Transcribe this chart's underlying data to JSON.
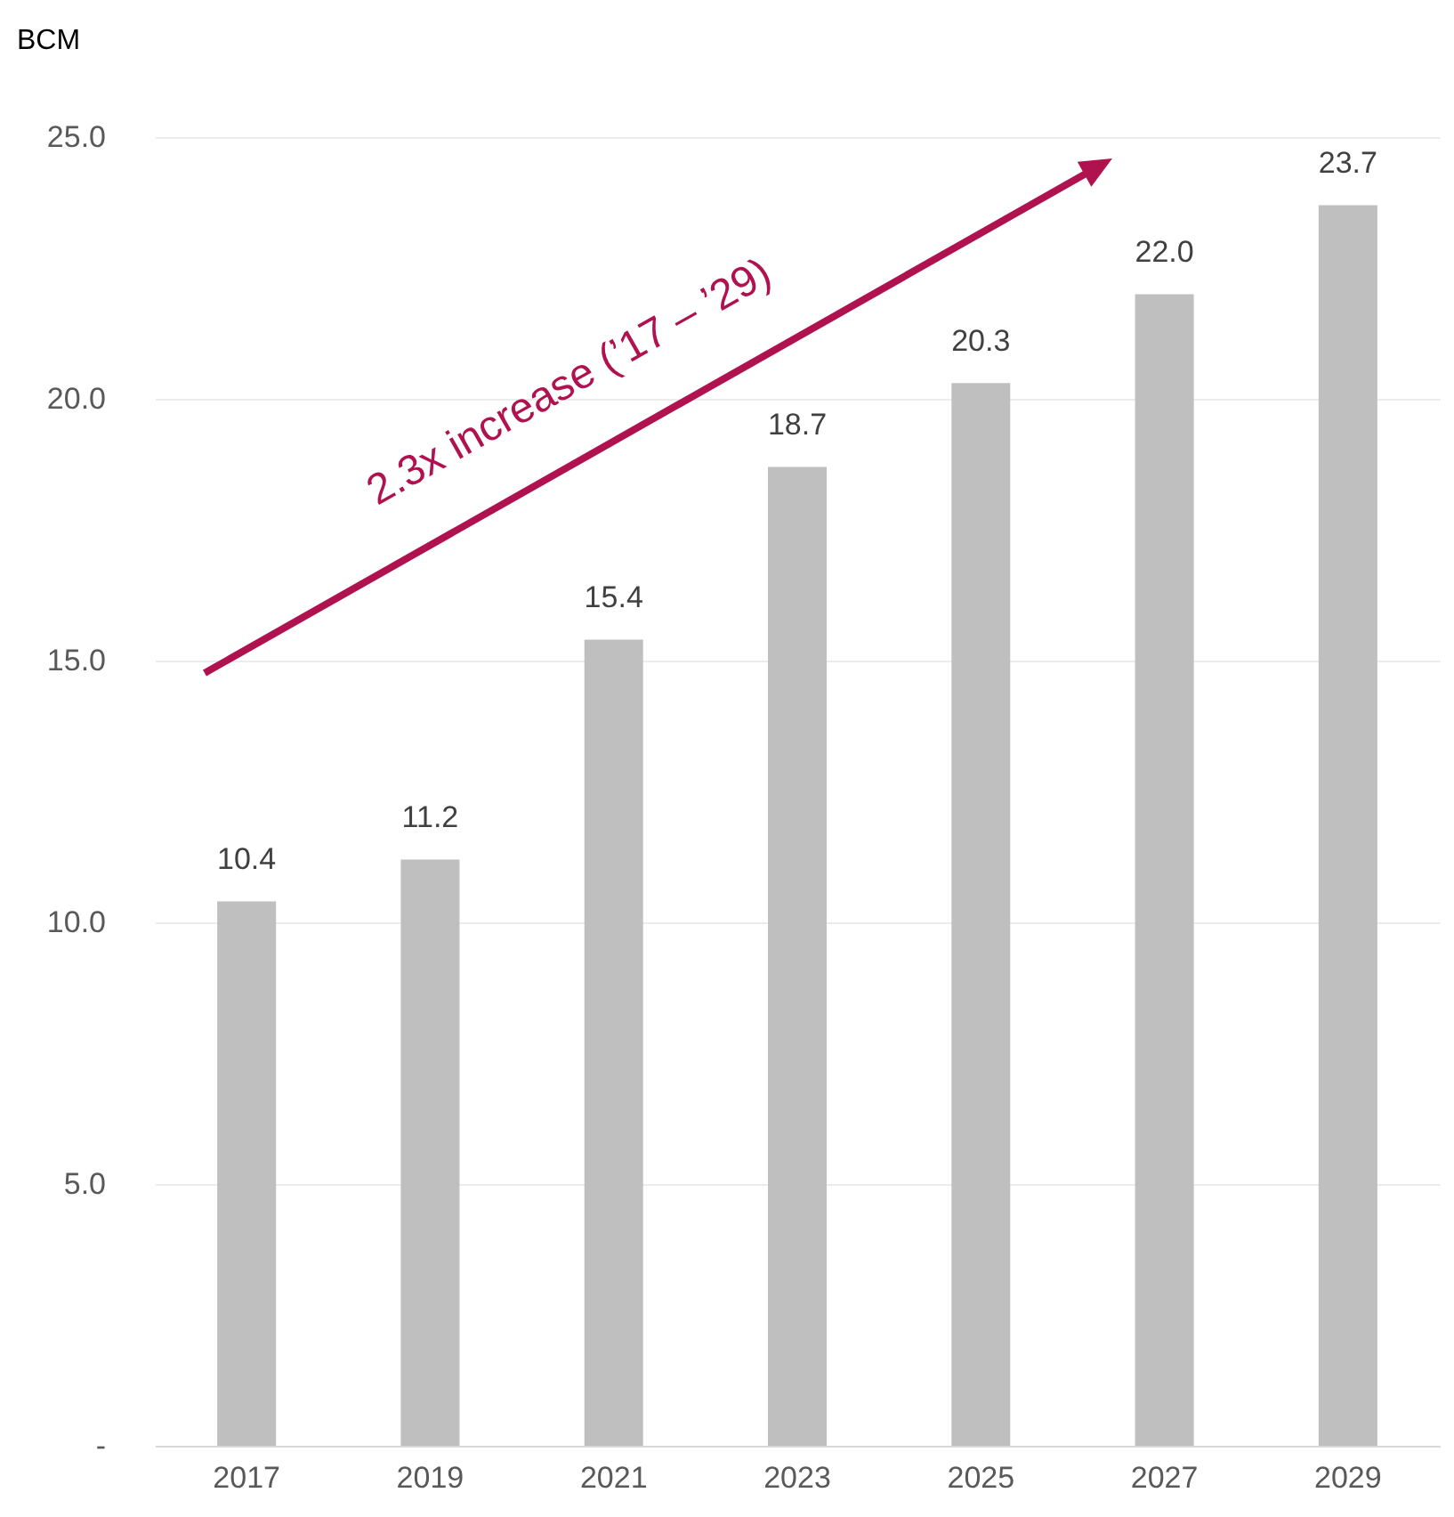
{
  "chart_data": {
    "type": "bar",
    "ylabel": "BCM",
    "categories": [
      "2017",
      "2019",
      "2021",
      "2023",
      "2025",
      "2027",
      "2029"
    ],
    "values": [
      10.4,
      11.2,
      15.4,
      18.7,
      20.3,
      22.0,
      23.7
    ],
    "color": "#bfbfbf",
    "ylim": [
      0,
      25
    ],
    "yticks": [
      {
        "value": 0,
        "label": "-"
      },
      {
        "value": 5,
        "label": "5.0"
      },
      {
        "value": 10,
        "label": "10.0"
      },
      {
        "value": 15,
        "label": "15.0"
      },
      {
        "value": 20,
        "label": "20.0"
      },
      {
        "value": 25,
        "label": "25.0"
      }
    ],
    "grid": "y",
    "value_labels": [
      "10.4",
      "11.2",
      "15.4",
      "18.7",
      "20.3",
      "22.0",
      "23.7"
    ],
    "annotations": [
      "2.3x increase (’17 – ’29)"
    ]
  }
}
